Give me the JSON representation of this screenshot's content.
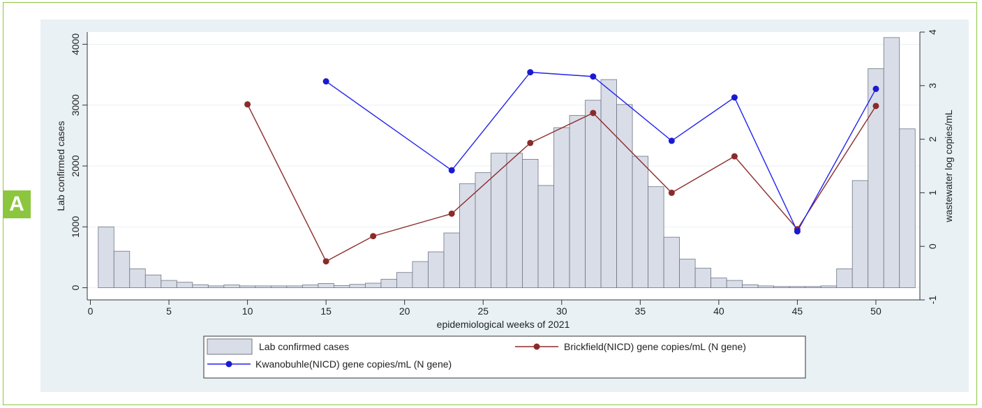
{
  "panel_label": "A",
  "colors": {
    "panel_border": "#8cc63f",
    "badge": "#8cc63f",
    "plot_region": "#e9f1f5",
    "plot_area": "#ffffff",
    "bar_fill": "#d9dde8",
    "bar_stroke": "#6e7585",
    "kwanobuhle": "#2222ee",
    "kwanobuhle_marker": "#1a1ad0",
    "brickfield": "#8b2a2a",
    "brickfield_marker": "#8b2a2a"
  },
  "chart_data": {
    "type": "bar",
    "xlabel": "epidemiological weeks of 2021",
    "ylabel": "Lab confirmed cases",
    "y2label": "wastewater log copies/mL",
    "xlim": [
      -0.2,
      52.8
    ],
    "ylim": [
      -200,
      4200
    ],
    "y2lim": [
      -1,
      4
    ],
    "xticks": [
      0,
      5,
      10,
      15,
      20,
      25,
      30,
      35,
      40,
      45,
      50
    ],
    "yticks": [
      0,
      1000,
      2000,
      3000,
      4000
    ],
    "y2ticks": [
      -1,
      0,
      1,
      2,
      3,
      4
    ],
    "grid": true,
    "legend_placement": "bottom",
    "bars": {
      "name": "Lab confirmed cases",
      "x": [
        1,
        2,
        3,
        4,
        5,
        6,
        7,
        8,
        9,
        10,
        11,
        12,
        13,
        14,
        15,
        16,
        17,
        18,
        19,
        20,
        21,
        22,
        23,
        24,
        25,
        26,
        27,
        28,
        29,
        30,
        31,
        32,
        33,
        34,
        35,
        36,
        37,
        38,
        39,
        40,
        41,
        42,
        43,
        44,
        45,
        46,
        47,
        48,
        49,
        50,
        51,
        52
      ],
      "values": [
        1000,
        600,
        310,
        210,
        120,
        90,
        50,
        30,
        45,
        30,
        30,
        30,
        30,
        45,
        70,
        35,
        55,
        75,
        140,
        250,
        430,
        590,
        900,
        1710,
        1890,
        2210,
        2210,
        2110,
        1680,
        2630,
        2830,
        3080,
        3420,
        3010,
        2160,
        1660,
        830,
        470,
        320,
        160,
        120,
        50,
        30,
        20,
        20,
        20,
        30,
        310,
        1760,
        3600,
        4110,
        2610
      ]
    },
    "series": [
      {
        "name": "Brickfield(NICD) gene copies/mL (N gene)",
        "axis": "right",
        "x": [
          10,
          15,
          18,
          23,
          28,
          32,
          37,
          41,
          45,
          50
        ],
        "values": [
          2.65,
          -0.28,
          0.19,
          0.61,
          1.93,
          2.49,
          1.0,
          1.68,
          0.32,
          2.62
        ]
      },
      {
        "name": "Kwanobuhle(NICD) gene copies/mL (N gene)",
        "axis": "right",
        "x": [
          15,
          23,
          28,
          32,
          37,
          41,
          45,
          50
        ],
        "values": [
          3.08,
          1.42,
          3.25,
          3.17,
          1.97,
          2.78,
          0.28,
          2.94
        ]
      }
    ],
    "legend": {
      "bars": "Lab confirmed cases",
      "brickfield": "Brickfield(NICD) gene copies/mL (N gene)",
      "kwanobuhle": "Kwanobuhle(NICD) gene copies/mL (N gene)"
    }
  }
}
